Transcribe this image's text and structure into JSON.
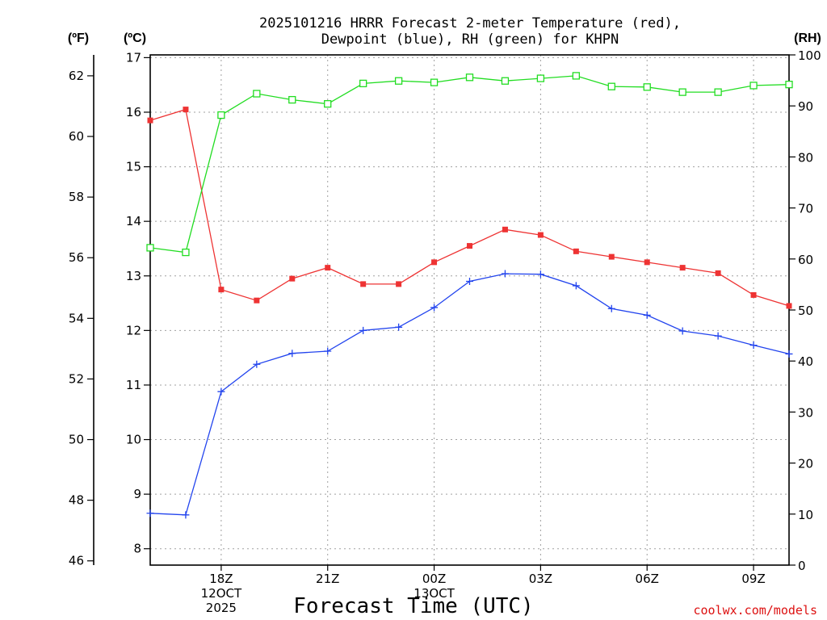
{
  "title_line1": "2025101216 HRRR Forecast 2-meter Temperature (red),",
  "title_line2": "Dewpoint (blue), RH (green) for KHPN",
  "unit_f": "(ºF)",
  "unit_c": "(ºC)",
  "unit_rh": "(RH)",
  "credit": "coolwx.com/models",
  "colors": {
    "temperature": "#ee3333",
    "dewpoint": "#2244ee",
    "rh": "#22dd22",
    "grid": "#a0a0a0",
    "credit": "#dd1111"
  },
  "chart_data": {
    "type": "line",
    "title": "2025101216 HRRR Forecast 2-meter Temperature (red), Dewpoint (blue), RH (green) for KHPN",
    "xlabel": "Forecast Time (UTC)",
    "ylabel": "(ºC)",
    "y2label": "(RH)",
    "y3label": "(ºF)",
    "grid": true,
    "x_hours": [
      0,
      1,
      2,
      3,
      4,
      5,
      6,
      7,
      8,
      9,
      10,
      11,
      12,
      13,
      14,
      15,
      16,
      17,
      18
    ],
    "xlim": [
      0,
      18
    ],
    "ylim_c": [
      7.7,
      17.05
    ],
    "ylim_f": [
      45.86,
      62.69
    ],
    "ylim_rh": [
      0,
      100
    ],
    "x_ticks": [
      {
        "hour": 2,
        "label": "18Z",
        "sub": [
          "12OCT",
          "2025"
        ]
      },
      {
        "hour": 5,
        "label": "21Z",
        "sub": []
      },
      {
        "hour": 8,
        "label": "00Z",
        "sub": [
          "13OCT"
        ]
      },
      {
        "hour": 11,
        "label": "03Z",
        "sub": []
      },
      {
        "hour": 14,
        "label": "06Z",
        "sub": []
      },
      {
        "hour": 17,
        "label": "09Z",
        "sub": []
      }
    ],
    "y_ticks_c": [
      8,
      9,
      10,
      11,
      12,
      13,
      14,
      15,
      16,
      17
    ],
    "y_ticks_f": [
      46,
      48,
      50,
      52,
      54,
      56,
      58,
      60,
      62
    ],
    "y_ticks_rh": [
      0,
      10,
      20,
      30,
      40,
      50,
      60,
      70,
      80,
      90,
      100
    ],
    "series": [
      {
        "name": "Temperature",
        "unit": "C",
        "marker": "filled-square",
        "values": [
          15.85,
          16.05,
          12.75,
          12.55,
          12.95,
          13.15,
          12.85,
          12.85,
          13.25,
          13.55,
          13.85,
          13.75,
          13.45,
          13.35,
          13.25,
          13.15,
          13.05,
          12.65,
          12.45
        ]
      },
      {
        "name": "Dewpoint",
        "unit": "C",
        "marker": "plus",
        "values": [
          8.65,
          8.62,
          10.88,
          11.38,
          11.58,
          11.62,
          12.0,
          12.06,
          12.42,
          12.9,
          13.04,
          13.03,
          12.82,
          12.4,
          12.28,
          11.99,
          11.9,
          11.73,
          11.57
        ]
      },
      {
        "name": "RH",
        "unit": "%",
        "marker": "open-square",
        "values": [
          62.2,
          61.3,
          88.2,
          92.4,
          91.2,
          90.4,
          94.4,
          94.9,
          94.6,
          95.6,
          94.9,
          95.4,
          95.9,
          93.8,
          93.7,
          92.7,
          92.7,
          94.0,
          94.2
        ]
      }
    ]
  }
}
